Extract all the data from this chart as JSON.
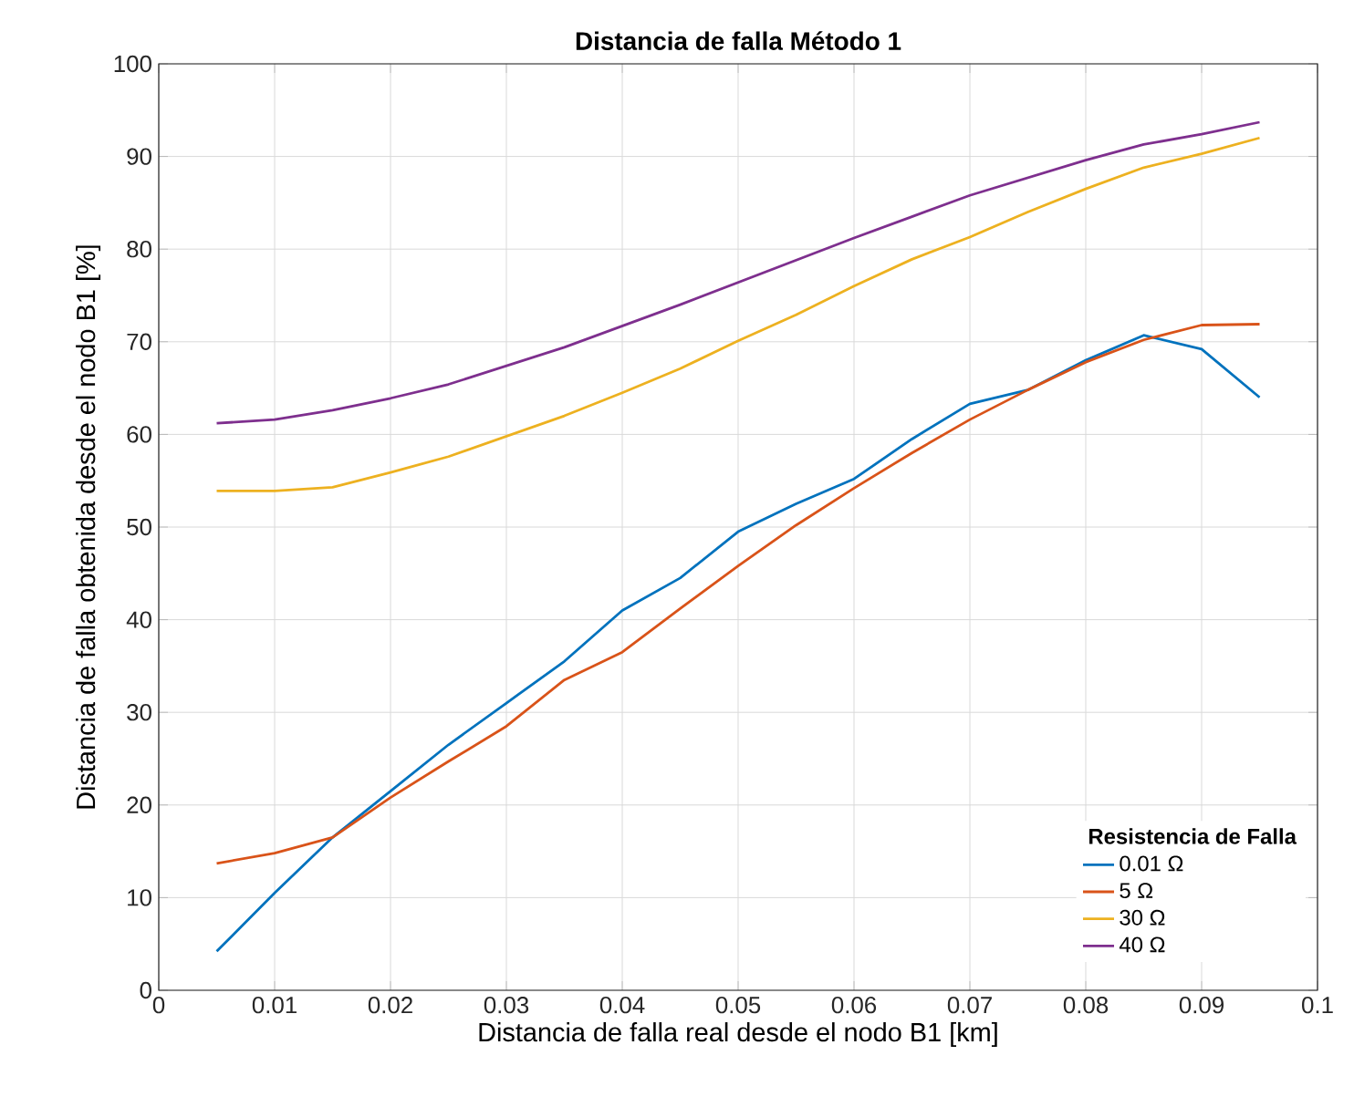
{
  "chart_data": {
    "type": "line",
    "title": "Distancia de falla Método 1",
    "xlabel": "Distancia de falla real desde el nodo B1 [km]",
    "ylabel": "Distancia de falla obtenida desde el nodo B1 [%]",
    "legend_title": "Resistencia de Falla",
    "x": [
      0.005,
      0.01,
      0.015,
      0.02,
      0.025,
      0.03,
      0.035,
      0.04,
      0.045,
      0.05,
      0.055,
      0.06,
      0.065,
      0.07,
      0.075,
      0.08,
      0.085,
      0.09,
      0.095
    ],
    "series": [
      {
        "name": "0.01 Ω",
        "color": "#0072bd",
        "values": [
          4.2,
          10.5,
          16.5,
          21.5,
          26.5,
          31,
          35.5,
          41,
          44.5,
          49.5,
          52.5,
          55.2,
          59.5,
          63.3,
          64.8,
          68,
          70.7,
          69.2,
          64
        ]
      },
      {
        "name": "5 Ω",
        "color": "#d95319",
        "values": [
          13.7,
          14.8,
          16.5,
          20.8,
          24.7,
          28.5,
          33.5,
          36.5,
          41.2,
          45.8,
          50.2,
          54.2,
          58,
          61.6,
          64.8,
          67.8,
          70.2,
          71.8,
          71.9
        ]
      },
      {
        "name": "30 Ω",
        "color": "#edb120",
        "values": [
          53.9,
          53.9,
          54.3,
          55.9,
          57.6,
          59.8,
          62,
          64.5,
          67.1,
          70.1,
          72.9,
          76,
          78.9,
          81.3,
          84,
          86.5,
          88.8,
          90.3,
          92
        ]
      },
      {
        "name": "40 Ω",
        "color": "#7e2f8e",
        "values": [
          61.2,
          61.6,
          62.6,
          63.9,
          65.4,
          67.4,
          69.4,
          71.7,
          74,
          76.4,
          78.8,
          81.2,
          83.5,
          85.8,
          87.7,
          89.6,
          91.3,
          92.4,
          93.7
        ]
      }
    ],
    "xlim": [
      0,
      0.1
    ],
    "xticks": [
      0,
      0.01,
      0.02,
      0.03,
      0.04,
      0.05,
      0.06,
      0.07,
      0.08,
      0.09,
      0.1
    ],
    "ylim": [
      0,
      100
    ],
    "yticks": [
      0,
      10,
      20,
      30,
      40,
      50,
      60,
      70,
      80,
      90,
      100
    ],
    "grid": true,
    "legend": "bottom right",
    "marker": "none",
    "line_style": "solid"
  }
}
